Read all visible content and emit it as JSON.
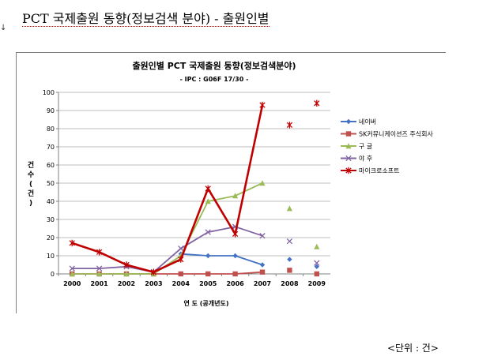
{
  "doc": {
    "title": "PCT 국제출원 동향(정보검색 분야) - 출원인별",
    "left_mark": "↓",
    "unit_note": "<단위 : 건>"
  },
  "colors": {
    "naver": "#4472c4",
    "sk": "#c0504d",
    "google": "#9bbb59",
    "yahoo": "#8064a2",
    "microsoft": "#c00000",
    "grid": "#bfbfbf",
    "axis": "#808080"
  },
  "chart_data": {
    "type": "line",
    "title": "출원인별 PCT 국제출원 동향(정보검색분야)",
    "subtitle": "- IPC : G06F 17/30 -",
    "xlabel": "연 도 (공개년도)",
    "ylabel": "건수(건)",
    "ylim": [
      0,
      100
    ],
    "yticks": [
      0,
      10,
      20,
      30,
      40,
      50,
      60,
      70,
      80,
      90,
      100
    ],
    "categories": [
      "2000",
      "2001",
      "2002",
      "2003",
      "2004",
      "2005",
      "2006",
      "2007",
      "2008",
      "2009"
    ],
    "grid": "horizontal",
    "legend_position": "right",
    "series": [
      {
        "name": "네이버",
        "marker": "diamond",
        "color_key": "naver",
        "values": [
          null,
          null,
          null,
          null,
          11,
          10,
          10,
          5,
          8,
          4
        ],
        "line_until_index": 7
      },
      {
        "name": "SK커뮤니케이션즈 주식회사",
        "marker": "square",
        "color_key": "sk",
        "values": [
          0,
          0,
          0,
          0,
          0,
          0,
          0,
          1,
          2,
          0
        ],
        "line_until_index": 7
      },
      {
        "name": "구 글",
        "marker": "triangle",
        "color_key": "google",
        "values": [
          0,
          0,
          0,
          0,
          10,
          40,
          43,
          50,
          36,
          15
        ],
        "line_until_index": 7
      },
      {
        "name": "야 후",
        "marker": "x",
        "color_key": "yahoo",
        "values": [
          3,
          3,
          4,
          1,
          14,
          23,
          26,
          21,
          18,
          6
        ],
        "line_until_index": 7
      },
      {
        "name": "마이크로소프트",
        "marker": "star",
        "color_key": "microsoft",
        "values": [
          17,
          12,
          5,
          1,
          8,
          47,
          22,
          93,
          82,
          94
        ],
        "line_until_index": 7
      }
    ]
  }
}
